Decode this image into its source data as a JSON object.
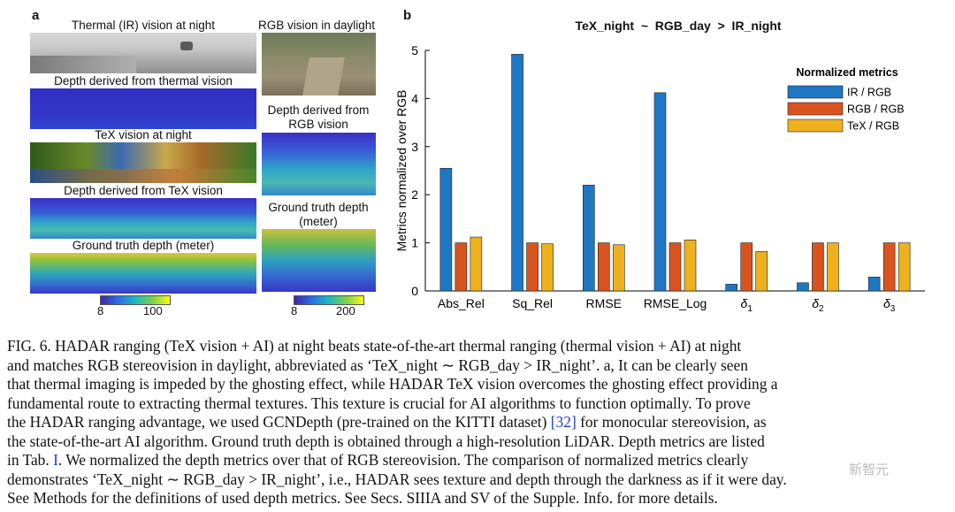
{
  "panel_a": {
    "letter": "a",
    "labels": {
      "thermal_vision": "Thermal (IR) vision at night",
      "depth_thermal": "Depth derived from thermal vision",
      "tex_vision": "TeX vision at night",
      "depth_tex": "Depth derived from TeX vision",
      "gt_left": "Ground truth depth (meter)",
      "rgb_vision": "RGB vision in daylight",
      "depth_rgb_1": "Depth derived from",
      "depth_rgb_2": "RGB vision",
      "gt_right_1": "Ground truth depth",
      "gt_right_2": "(meter)"
    },
    "colorbar_left": {
      "min": "8",
      "max": "100"
    },
    "colorbar_right": {
      "min": "8",
      "max": "200"
    }
  },
  "panel_b": {
    "letter": "b",
    "title": "TeX_night  ~  RGB_day  >  IR_night",
    "legend_title": "Normalized metrics"
  },
  "chart_data": {
    "type": "bar",
    "title": "TeX_night  ~  RGB_day  >  IR_night",
    "ylabel": "Metrics normalized over RGB",
    "xlabel": "",
    "ylim": [
      0,
      5
    ],
    "yticks": [
      "0",
      "1",
      "2",
      "3",
      "4",
      "5"
    ],
    "categories": [
      "Abs_Rel",
      "Sq_Rel",
      "RMSE",
      "RMSE_Log",
      "δ1",
      "δ2",
      "δ3"
    ],
    "legend_title": "Normalized metrics",
    "series": [
      {
        "name": "IR / RGB",
        "color": "#1f77c4",
        "values": [
          2.55,
          4.92,
          2.2,
          4.12,
          0.14,
          0.17,
          0.29
        ]
      },
      {
        "name": "RGB / RGB",
        "color": "#d9531e",
        "values": [
          1.0,
          1.0,
          1.0,
          1.0,
          1.0,
          1.0,
          1.0
        ]
      },
      {
        "name": "TeX / RGB",
        "color": "#edb120",
        "values": [
          1.12,
          0.98,
          0.96,
          1.06,
          0.82,
          1.0,
          1.0
        ]
      }
    ]
  },
  "caption": {
    "l1": "FIG. 6. HADAR ranging (TeX vision + AI) at night beats state-of-the-art thermal ranging (thermal vision + AI) at night",
    "l2": "and matches RGB stereovision in daylight, abbreviated as ‘TeX_night ∼ RGB_day > IR_night’.  a, It can be clearly seen",
    "l3": "that thermal imaging is impeded by the ghosting effect, while HADAR TeX vision overcomes the ghosting effect providing a",
    "l4": "fundamental route to extracting thermal textures.  This texture is crucial for AI algorithms to function optimally.  To prove",
    "l5a": "the HADAR ranging advantage, we used GCNDepth (pre-trained on the KITTI dataset) ",
    "l5ref": "[32]",
    "l5b": " for monocular stereovision, as",
    "l6": "the state-of-the-art AI algorithm.  Ground truth depth is obtained through a high-resolution LiDAR. Depth metrics are listed",
    "l7a": "in Tab. ",
    "l7ref": "I",
    "l7b": ".  We normalized the depth metrics over that of RGB stereovision.  The comparison of normalized metrics clearly",
    "l8": "demonstrates ‘TeX_night ∼ RGB_day > IR_night’, i.e., HADAR sees texture and depth through the darkness as if it were day.",
    "l9": "See Methods for the definitions of used depth metrics. See Secs. SIIIA and SV of the Supple. Info. for more details."
  },
  "watermark": "新智元"
}
